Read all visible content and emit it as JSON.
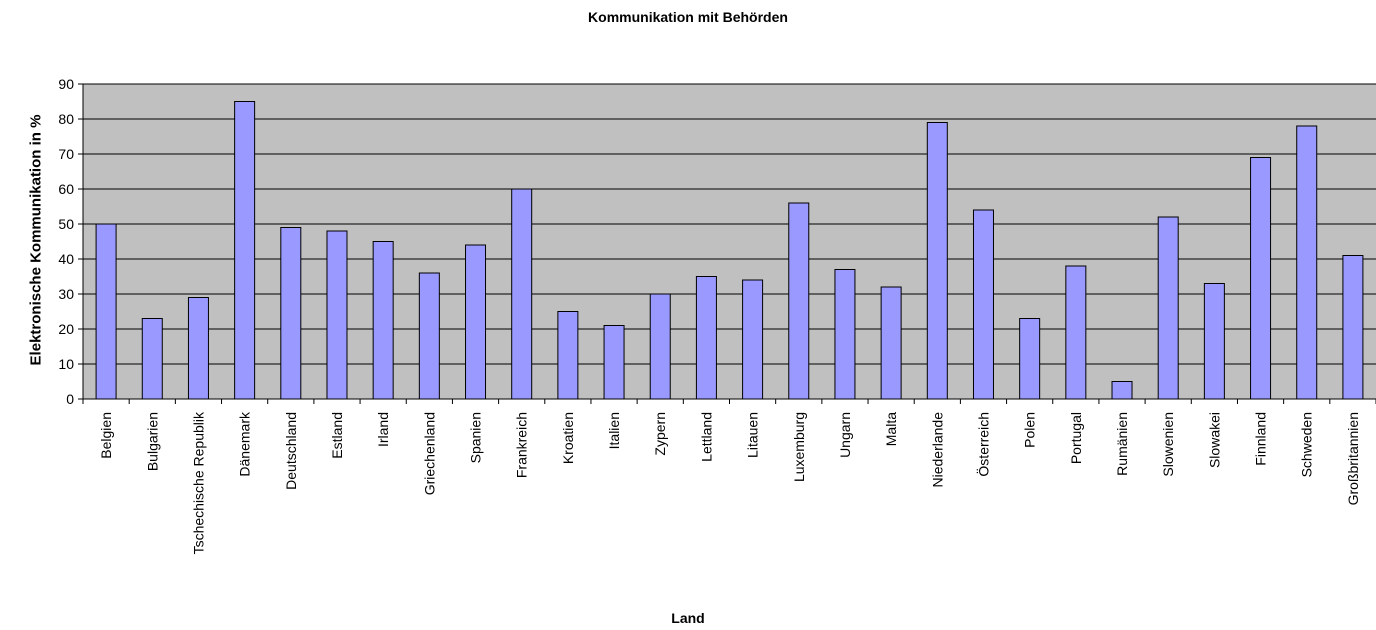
{
  "chart_data": {
    "type": "bar",
    "title": "Kommunikation mit Behörden",
    "xlabel": "Land",
    "ylabel": "Elektronische Kommunikation in %",
    "ylim": [
      0,
      90
    ],
    "yticks": [
      0,
      10,
      20,
      30,
      40,
      50,
      60,
      70,
      80,
      90
    ],
    "grid": true,
    "legend": "none",
    "colors": {
      "bar": "#9999ff",
      "plot_bg": "#c0c0c0",
      "grid": "#000000"
    },
    "categories": [
      "Belgien",
      "Bulgarien",
      "Tschechische Republik",
      "Dänemark",
      "Deutschland",
      "Estland",
      "Irland",
      "Griechenland",
      "Spanien",
      "Frankreich",
      "Kroatien",
      "Italien",
      "Zypern",
      "Lettland",
      "Litauen",
      "Luxemburg",
      "Ungarn",
      "Malta",
      "Niederlande",
      "Österreich",
      "Polen",
      "Portugal",
      "Rumänien",
      "Slowenien",
      "Slowakei",
      "Finnland",
      "Schweden",
      "Großbritannien"
    ],
    "values": [
      50,
      23,
      29,
      85,
      49,
      48,
      45,
      36,
      44,
      60,
      25,
      21,
      30,
      35,
      34,
      56,
      37,
      32,
      79,
      54,
      23,
      38,
      5,
      52,
      33,
      69,
      78,
      41
    ]
  }
}
